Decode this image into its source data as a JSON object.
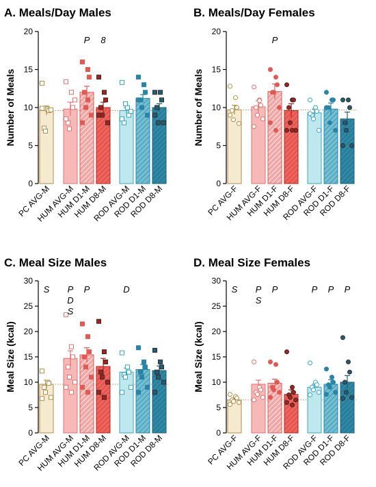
{
  "colors": {
    "pc": {
      "fill": "#f5e9cf",
      "stroke": "#b08f4a"
    },
    "hum_avg": {
      "fill": "#f7b8b8",
      "stroke": "#e0726f"
    },
    "hum_d1": {
      "fill": "#f3a7a5",
      "stroke": "#e05a55"
    },
    "hum_d8": {
      "fill": "#e8574f",
      "stroke": "#b5221e"
    },
    "rod_avg": {
      "fill": "#bfe7ee",
      "stroke": "#3ba5bf"
    },
    "rod_d1": {
      "fill": "#73bfd2",
      "stroke": "#2a84a6"
    },
    "rod_d8": {
      "fill": "#277f9b",
      "stroke": "#1b5f78"
    },
    "pc_line": "#b08f4a"
  },
  "chart_data": [
    {
      "type": "bar",
      "title": "A. Meals/Day Males",
      "ylabel": "Number of Meals",
      "ylim": [
        0,
        20
      ],
      "yticks": [
        "0",
        "5",
        "10",
        "15",
        "20"
      ],
      "categories": [
        "PC AVG-M",
        "HUM AVG-M",
        "HUM D1-M",
        "HUM D8-M",
        "ROD AVG-M",
        "ROD D1-M",
        "ROD D8-M"
      ],
      "values": [
        9.6,
        9.8,
        12.0,
        10.0,
        9.6,
        11.2,
        10.0
      ],
      "errors": [
        0.6,
        0.9,
        0.8,
        0.7,
        0.4,
        0.5,
        0.5
      ],
      "points": [
        [
          13.2,
          9.8,
          9.6,
          7.3,
          6.9,
          9.7,
          9.9
        ],
        [
          13.4,
          12.0,
          10.0,
          8.0,
          7.2,
          11.0,
          8.5
        ],
        [
          16.0,
          15.0,
          14.0,
          12.0,
          10.0,
          9.0,
          8.0,
          11.0
        ],
        [
          14.0,
          12.0,
          11.0,
          10.0,
          9.0,
          8.0,
          9.0
        ],
        [
          13.3,
          10.0,
          9.0,
          8.0,
          10.5,
          9.5,
          8.5
        ],
        [
          14.0,
          13.0,
          12.0,
          11.0,
          10.0,
          9.0,
          11.0
        ],
        [
          12.0,
          12.0,
          11.0,
          10.0,
          8.0,
          8.0,
          9.0
        ]
      ],
      "reference_line": 9.6,
      "annotations": [
        {
          "category": "HUM D1-M",
          "lines": [
            "P"
          ]
        },
        {
          "category": "HUM D8-M",
          "lines": [
            "8"
          ]
        }
      ]
    },
    {
      "type": "bar",
      "title": "B. Meals/Day Females",
      "ylabel": "Number of Meals",
      "ylim": [
        0,
        20
      ],
      "yticks": [
        "0",
        "5",
        "10",
        "15",
        "20"
      ],
      "categories": [
        "PC AVG-F",
        "HUM AVG-F",
        "HUM D1-F",
        "HUM D8-F",
        "ROD AVG-F",
        "ROD D1-F",
        "ROD D8-F"
      ],
      "values": [
        9.7,
        10.1,
        12.1,
        9.6,
        9.3,
        9.8,
        8.5
      ],
      "errors": [
        0.6,
        0.8,
        1.0,
        0.9,
        0.5,
        0.8,
        0.9
      ],
      "points": [
        [
          12.8,
          11.3,
          10.0,
          9.6,
          8.4,
          7.9,
          9.0
        ],
        [
          12.7,
          11.0,
          10.3,
          10.0,
          9.0,
          8.5,
          7.5,
          10.9
        ],
        [
          15.0,
          14.0,
          13.0,
          12.0,
          12.0,
          10.0,
          8.0,
          7.0
        ],
        [
          13.0,
          11.0,
          11.0,
          10.0,
          8.0,
          7.0,
          7.0,
          7.0
        ],
        [
          11.0,
          10.0,
          9.5,
          9.0,
          8.5,
          7.0,
          9.2
        ],
        [
          12.0,
          11.0,
          11.0,
          10.0,
          8.0,
          7.0,
          10.0
        ],
        [
          11.0,
          11.0,
          10.0,
          8.0,
          7.0,
          5.0,
          5.0
        ]
      ],
      "reference_line": 9.7,
      "annotations": [
        {
          "category": "HUM D1-F",
          "lines": [
            "P"
          ]
        }
      ]
    },
    {
      "type": "bar",
      "title": "C. Meal Size Males",
      "ylabel": "Meal Size (kcal)",
      "ylim": [
        0,
        30
      ],
      "yticks": [
        "0",
        "5",
        "10",
        "15",
        "20",
        "25",
        "30"
      ],
      "categories": [
        "PC AVG-M",
        "HUM AVG-M",
        "HUM D1-M",
        "HUM D8-M",
        "ROD AVG-M",
        "ROD D1-M",
        "ROD D8-M"
      ],
      "values": [
        9.6,
        14.7,
        15.4,
        13.1,
        12.0,
        12.5,
        12.3
      ],
      "errors": [
        0.8,
        1.5,
        1.4,
        1.6,
        0.8,
        1.0,
        0.9
      ],
      "points": [
        [
          12.2,
          10.0,
          9.8,
          9.0,
          8.0,
          7.0,
          6.8
        ],
        [
          23.3,
          17.0,
          15.0,
          13.0,
          11.0,
          10.0,
          9.0,
          8.0
        ],
        [
          21.5,
          19.0,
          16.0,
          15.0,
          13.0,
          11.0,
          9.0,
          8.0
        ],
        [
          22.0,
          16.0,
          14.0,
          12.0,
          11.0,
          10.0,
          8.0,
          7.0
        ],
        [
          15.8,
          13.0,
          12.0,
          11.5,
          11.0,
          9.0,
          8.0
        ],
        [
          16.8,
          14.0,
          13.0,
          12.0,
          11.0,
          9.0,
          8.0
        ],
        [
          16.3,
          14.0,
          13.0,
          12.0,
          11.0,
          10.0,
          8.0
        ]
      ],
      "reference_line": 9.6,
      "annotations": [
        {
          "category": "PC AVG-M",
          "lines": [
            "S"
          ]
        },
        {
          "category": "HUM AVG-M",
          "lines": [
            "P",
            "D",
            "S"
          ]
        },
        {
          "category": "HUM D1-M",
          "lines": [
            "P"
          ]
        },
        {
          "category": "ROD AVG-M",
          "lines": [
            "D"
          ]
        }
      ]
    },
    {
      "type": "bar",
      "title": "D. Meal Size Females",
      "ylabel": "Meal Size (kcal)",
      "ylim": [
        0,
        30
      ],
      "yticks": [
        "0",
        "5",
        "10",
        "15",
        "20",
        "25",
        "30"
      ],
      "categories": [
        "PC AVG-F",
        "HUM AVG-F",
        "HUM D1-F",
        "HUM D8-F",
        "ROD AVG-F",
        "ROD D1-F",
        "ROD D8-F"
      ],
      "values": [
        6.5,
        9.6,
        9.8,
        7.6,
        9.0,
        9.6,
        10.0
      ],
      "errors": [
        0.4,
        0.8,
        0.8,
        0.9,
        0.6,
        0.9,
        1.3
      ],
      "points": [
        [
          7.6,
          7.2,
          6.9,
          6.5,
          6.2,
          6.0,
          5.6
        ],
        [
          14.0,
          9.0,
          8.5,
          8.0,
          7.6,
          7.0,
          6.5
        ],
        [
          14.0,
          13.5,
          10.0,
          9.0,
          8.5,
          8.0,
          7.0
        ],
        [
          16.0,
          9.0,
          8.0,
          7.5,
          7.0,
          6.5,
          6.0,
          5.5
        ],
        [
          13.8,
          10.0,
          9.5,
          9.0,
          8.5,
          8.0,
          7.5
        ],
        [
          12.6,
          11.0,
          10.0,
          9.5,
          9.0,
          8.0,
          7.6
        ],
        [
          18.8,
          14.0,
          12.0,
          10.0,
          8.0,
          7.0,
          6.8
        ]
      ],
      "reference_line": 6.5,
      "annotations": [
        {
          "category": "PC AVG-F",
          "lines": [
            "S"
          ]
        },
        {
          "category": "HUM AVG-F",
          "lines": [
            "P",
            "S"
          ]
        },
        {
          "category": "HUM D1-F",
          "lines": [
            "P"
          ]
        },
        {
          "category": "ROD AVG-F",
          "lines": [
            "P"
          ]
        },
        {
          "category": "ROD D1-F",
          "lines": [
            "P"
          ]
        },
        {
          "category": "ROD D8-F",
          "lines": [
            "P"
          ]
        }
      ]
    }
  ]
}
